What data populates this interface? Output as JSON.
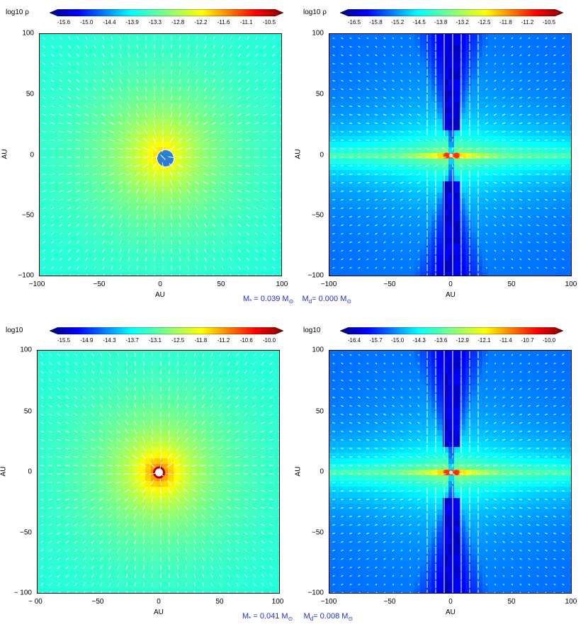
{
  "panels": [
    {
      "id": "p1",
      "colorbar": {
        "title": "log10 ρ",
        "ticks": [
          "-15.6",
          "-15.0",
          "-14.4",
          "-13.9",
          "-13.3",
          "-12.8",
          "-12.2",
          "-11.6",
          "-11.1",
          "-10.5"
        ]
      },
      "xticks": [
        "−100",
        "−50",
        "0",
        "50",
        "100"
      ],
      "yticks": [
        "100",
        "50",
        "0",
        "−50",
        "−100"
      ],
      "xlabel": "AU",
      "ylabel": "AU",
      "style": "sphere"
    },
    {
      "id": "p2",
      "colorbar": {
        "title": "log10 ρ",
        "ticks": [
          "-16.5",
          "-15.8",
          "-15.2",
          "-14.5",
          "-13.8",
          "-13.2",
          "-12.5",
          "-11.8",
          "-11.2",
          "-10.5"
        ]
      },
      "xticks": [
        "−100",
        "−50",
        "0",
        "50",
        "100"
      ],
      "yticks": [
        "100",
        "50",
        "0",
        "−50",
        "−100"
      ],
      "xlabel": "AU",
      "ylabel": "AU",
      "style": "disk1"
    },
    {
      "id": "p3",
      "colorbar": {
        "title": "log10",
        "ticks": [
          "-15.5",
          "-14.9",
          "-14.3",
          "-13.7",
          "-13.1",
          "-12.5",
          "-11.8",
          "-11.2",
          "-10.6",
          "-10.0"
        ]
      },
      "xticks": [
        "− 00",
        "−50",
        "0",
        "50",
        "100"
      ],
      "yticks": [
        "100",
        "50",
        "0",
        "−50",
        "− 100"
      ],
      "xlabel": "AU",
      "ylabel": "AU",
      "style": "sphere2"
    },
    {
      "id": "p4",
      "colorbar": {
        "title": "log10",
        "ticks": [
          "-16.4",
          "-15.7",
          "-15.0",
          "-14.3",
          "-13.6",
          "-12.9",
          "-12.1",
          "-11.4",
          "-10.7",
          "-10.0"
        ]
      },
      "xticks": [
        "−100",
        "−50",
        "0",
        "50",
        "100"
      ],
      "yticks": [
        "100",
        "50",
        "0",
        "−50",
        "−100"
      ],
      "xlabel": "AU",
      "ylabel": "AU",
      "style": "disk2"
    }
  ],
  "captions": [
    {
      "mstar": "M",
      "mstar_sub": "*",
      "mstar_val": " = 0.039 M",
      "sun": "⊙",
      "md": "M",
      "md_sub": "d",
      "md_val": "= 0.000 M"
    },
    {
      "mstar": "M",
      "mstar_sub": "*",
      "mstar_val": " =  0.041 M",
      "sun": "⊙",
      "md": "M",
      "md_sub": "d",
      "md_val": "=  0.008 M"
    }
  ],
  "colors": {
    "jet": [
      "#00007f",
      "#0000ff",
      "#007fff",
      "#00ffff",
      "#7fff7f",
      "#ffff00",
      "#ff7f00",
      "#ff0000",
      "#7f0000"
    ]
  }
}
